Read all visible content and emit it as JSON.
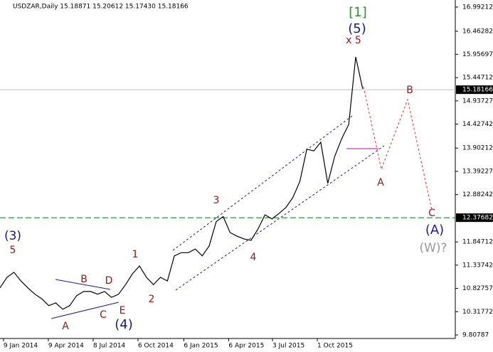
{
  "chart_data": {
    "type": "line",
    "title": "USDZAR,Daily  15.18871 15.20612 15.17430 15.18166",
    "color": "#000000",
    "grid": false,
    "x": [
      "2014-01-02",
      "2014-01-16",
      "2014-01-30",
      "2014-02-13",
      "2014-02-27",
      "2014-03-13",
      "2014-03-27",
      "2014-04-10",
      "2014-04-24",
      "2014-05-08",
      "2014-05-22",
      "2014-06-05",
      "2014-06-19",
      "2014-07-03",
      "2014-07-17",
      "2014-07-31",
      "2014-08-14",
      "2014-08-28",
      "2014-09-11",
      "2014-09-25",
      "2014-10-09",
      "2014-10-23",
      "2014-11-06",
      "2014-11-20",
      "2014-12-04",
      "2014-12-18",
      "2015-01-01",
      "2015-01-15",
      "2015-01-29",
      "2015-02-12",
      "2015-02-26",
      "2015-03-12",
      "2015-03-26",
      "2015-04-09",
      "2015-04-23",
      "2015-05-07",
      "2015-05-21",
      "2015-06-04",
      "2015-06-18",
      "2015-07-02",
      "2015-07-16",
      "2015-07-30",
      "2015-08-13",
      "2015-08-27",
      "2015-09-10",
      "2015-09-24",
      "2015-10-08",
      "2015-10-22",
      "2015-11-05",
      "2015-11-19",
      "2015-12-03",
      "2015-12-17",
      "2015-12-31"
    ],
    "values": [
      10.84,
      11.07,
      11.18,
      10.99,
      10.84,
      10.7,
      10.6,
      10.45,
      10.51,
      10.37,
      10.45,
      10.67,
      10.76,
      10.76,
      10.7,
      10.76,
      10.63,
      10.7,
      10.91,
      11.15,
      11.32,
      11.07,
      10.91,
      11.07,
      10.99,
      11.54,
      11.61,
      11.61,
      11.69,
      11.54,
      11.76,
      12.29,
      12.4,
      12.05,
      11.97,
      11.91,
      11.88,
      12.13,
      12.44,
      12.35,
      12.47,
      12.6,
      12.82,
      13.17,
      13.88,
      13.84,
      14.03,
      13.13,
      13.72,
      14.11,
      14.42,
      15.9,
      15.2
    ],
    "xlim": [
      "2014-01-02",
      "2016-07-04"
    ],
    "xticks": [
      {
        "value": "2014-01-09",
        "label": "9 Jan 2014"
      },
      {
        "value": "2014-04-09",
        "label": "9 Apr 2014"
      },
      {
        "value": "2014-07-08",
        "label": "8 Jul 2014"
      },
      {
        "value": "2014-10-06",
        "label": "6 Oct 2014"
      },
      {
        "value": "2015-01-06",
        "label": "6 Jan 2015"
      },
      {
        "value": "2015-04-06",
        "label": "6 Apr 2015"
      },
      {
        "value": "2015-07-03",
        "label": "3 Jul 2015"
      },
      {
        "value": "2015-10-01",
        "label": "1 Oct 2015"
      }
    ],
    "ylim": [
      9.73,
      17.147
    ],
    "yticks": [
      16.99212,
      16.46282,
      15.95697,
      15.44712,
      14.93727,
      14.42742,
      13.90212,
      13.39227,
      12.88242,
      11.84712,
      11.33742,
      10.82757,
      10.31772,
      9.80787
    ],
    "price_lines": [
      {
        "value": 15.18166,
        "color": "#c0c0c0"
      },
      {
        "value": 12.37682,
        "color": "#008000"
      }
    ],
    "annotations": [
      {
        "text": "[1]",
        "color": "#2e8b2e"
      },
      {
        "text": "(5)",
        "color": "#1a1a8c"
      },
      {
        "text": "x 5",
        "color": "#8b1a1a"
      },
      {
        "text": "B",
        "color": "#8b1a1a"
      },
      {
        "text": "A",
        "color": "#8b1a1a"
      },
      {
        "text": "C",
        "color": "#8b1a1a"
      },
      {
        "text": "(A)",
        "color": "#1a1a8c"
      },
      {
        "text": "(W)?",
        "color": "#999999"
      },
      {
        "text": "(3)",
        "color": "#1a1a8c"
      },
      {
        "text": "5",
        "color": "#8b1a1a"
      },
      {
        "text": "1",
        "color": "#8b1a1a"
      },
      {
        "text": "2",
        "color": "#8b1a1a"
      },
      {
        "text": "3",
        "color": "#8b1a1a"
      },
      {
        "text": "4",
        "color": "#8b1a1a"
      },
      {
        "text": "A",
        "color": "#8b1a1a"
      },
      {
        "text": "B",
        "color": "#8b1a1a"
      },
      {
        "text": "C",
        "color": "#8b1a1a"
      },
      {
        "text": "D",
        "color": "#8b1a1a"
      },
      {
        "text": "E",
        "color": "#8b1a1a"
      },
      {
        "text": "(4)",
        "color": "#1a1a8c"
      }
    ]
  }
}
